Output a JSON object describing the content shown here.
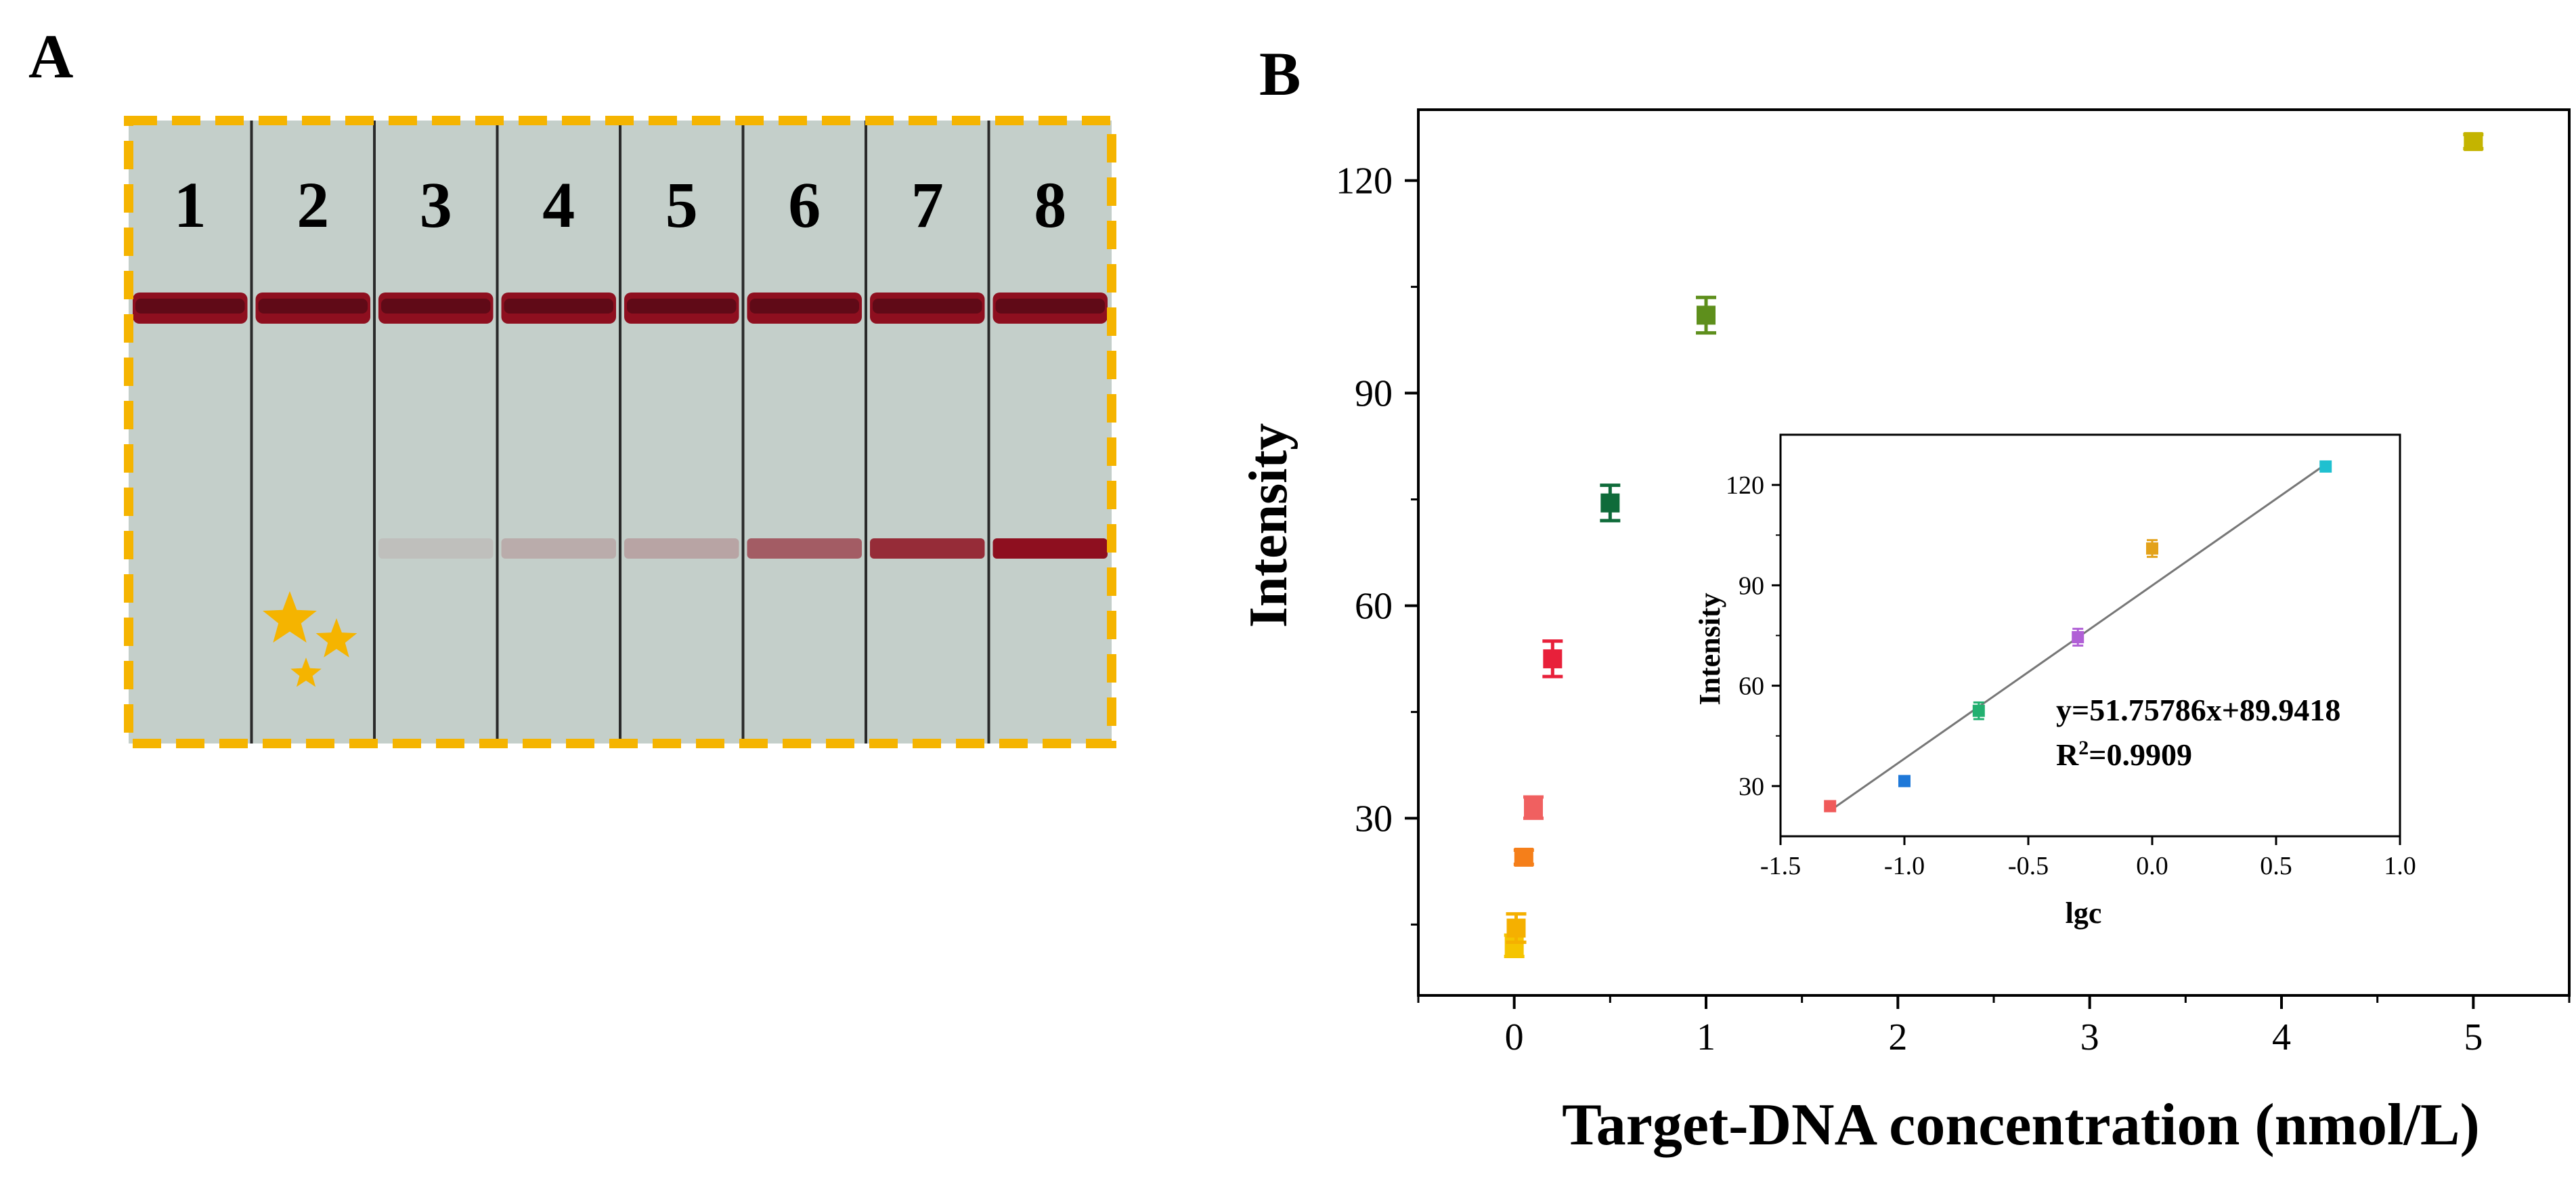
{
  "panel_a": {
    "letter": "A",
    "lane_labels": [
      "1",
      "2",
      "3",
      "4",
      "5",
      "6",
      "7",
      "8"
    ],
    "test_line_intensity": [
      0,
      0,
      0.08,
      0.18,
      0.22,
      0.6,
      0.85,
      1.0
    ],
    "colors": {
      "strip": "#c4cfca",
      "frame": "#f5b400",
      "band": "#8e0f1f",
      "star": "#f5b400"
    }
  },
  "chart_data": [
    {
      "type": "scatter",
      "panel_letter": "B",
      "xlabel": "Target-DNA concentration (nmol/L)",
      "ylabel": "Intensity",
      "xlim": [
        -0.5,
        5.5
      ],
      "ylim": [
        5,
        130
      ],
      "xticks": [
        0,
        1,
        2,
        3,
        4,
        5
      ],
      "yticks": [
        30,
        60,
        90,
        120
      ],
      "points": [
        {
          "x": 0,
          "y": 12,
          "err": 1.5,
          "color": "#f5c400"
        },
        {
          "x": 0.01,
          "y": 14.5,
          "err": 2,
          "color": "#f5b000"
        },
        {
          "x": 0.05,
          "y": 24.5,
          "err": 1,
          "color": "#f57f1a"
        },
        {
          "x": 0.1,
          "y": 31.5,
          "err": 1.5,
          "color": "#f06060"
        },
        {
          "x": 0.2,
          "y": 52.5,
          "err": 2.5,
          "color": "#e8203a"
        },
        {
          "x": 0.5,
          "y": 74.5,
          "err": 2.5,
          "color": "#0f6b3a"
        },
        {
          "x": 1,
          "y": 101,
          "err": 2.5,
          "color": "#5e8f1c"
        },
        {
          "x": 5,
          "y": 125.5,
          "err": 1,
          "color": "#c4b400"
        }
      ]
    },
    {
      "type": "scatter",
      "role": "inset",
      "xlabel": "lgc",
      "ylabel": "Intensity",
      "xlim": [
        -1.5,
        1.0
      ],
      "ylim": [
        15,
        135
      ],
      "xticks": [
        "-1.5",
        "-1.0",
        "-0.5",
        "0.0",
        "0.5",
        "1.0"
      ],
      "yticks": [
        30,
        60,
        90,
        120
      ],
      "points": [
        {
          "x": -1.3,
          "y": 24,
          "err": 1,
          "color": "#f05a5a"
        },
        {
          "x": -1.0,
          "y": 31.5,
          "err": 1.5,
          "color": "#1f78d8"
        },
        {
          "x": -0.7,
          "y": 52.5,
          "err": 2.5,
          "color": "#22b070"
        },
        {
          "x": -0.3,
          "y": 74.5,
          "err": 2.5,
          "color": "#b05fd6"
        },
        {
          "x": 0.0,
          "y": 101,
          "err": 2.5,
          "color": "#e3a21a"
        },
        {
          "x": 0.7,
          "y": 125.5,
          "err": 1,
          "color": "#1fc0d0"
        }
      ],
      "fit": {
        "slope": 51.75786,
        "intercept": 89.9418,
        "x_range": [
          -1.3,
          0.7
        ],
        "color": "#777777"
      },
      "equation": "y=51.75786x+89.9418",
      "r2_text": "R",
      "r2_sup": "2",
      "r2_value": "=0.9909"
    }
  ]
}
